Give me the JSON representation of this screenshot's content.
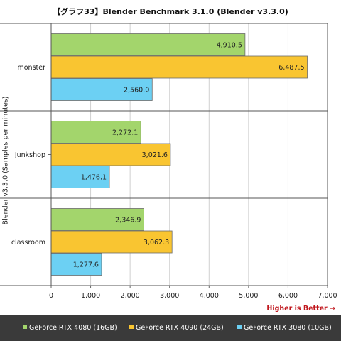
{
  "chart_data": {
    "type": "bar",
    "orientation": "horizontal",
    "title": "【グラフ33】Blender Benchmark 3.1.0 (Blender v3.3.0)",
    "ylabel": "Blender v3.3.0 (Samples per minutes)",
    "xlabel": "",
    "xlim": [
      0,
      7000
    ],
    "xticks": [
      "0",
      "1,000",
      "2,000",
      "3,000",
      "4,000",
      "5,000",
      "6,000",
      "7,000"
    ],
    "categories": [
      "monster",
      "Junkshop",
      "classroom"
    ],
    "series": [
      {
        "name": "GeForce RTX 4080 (16GB)",
        "color": "#a3d56c",
        "values": [
          4910.5,
          2272.1,
          2346.9
        ],
        "labels": [
          "4,910.5",
          "2,272.1",
          "2,346.9"
        ]
      },
      {
        "name": "GeForce RTX 4090 (24GB)",
        "color": "#f9c531",
        "values": [
          6487.5,
          3021.6,
          3062.3
        ],
        "labels": [
          "6,487.5",
          "3,021.6",
          "3,062.3"
        ]
      },
      {
        "name": "GeForce RTX 3080 (10GB)",
        "color": "#6cd0f3",
        "values": [
          2560.0,
          1476.1,
          1277.6
        ],
        "labels": [
          "2,560.0",
          "1,476.1",
          "1,277.6"
        ]
      }
    ],
    "annotation": "Higher is Better →",
    "grid": true,
    "legend_position": "bottom"
  }
}
